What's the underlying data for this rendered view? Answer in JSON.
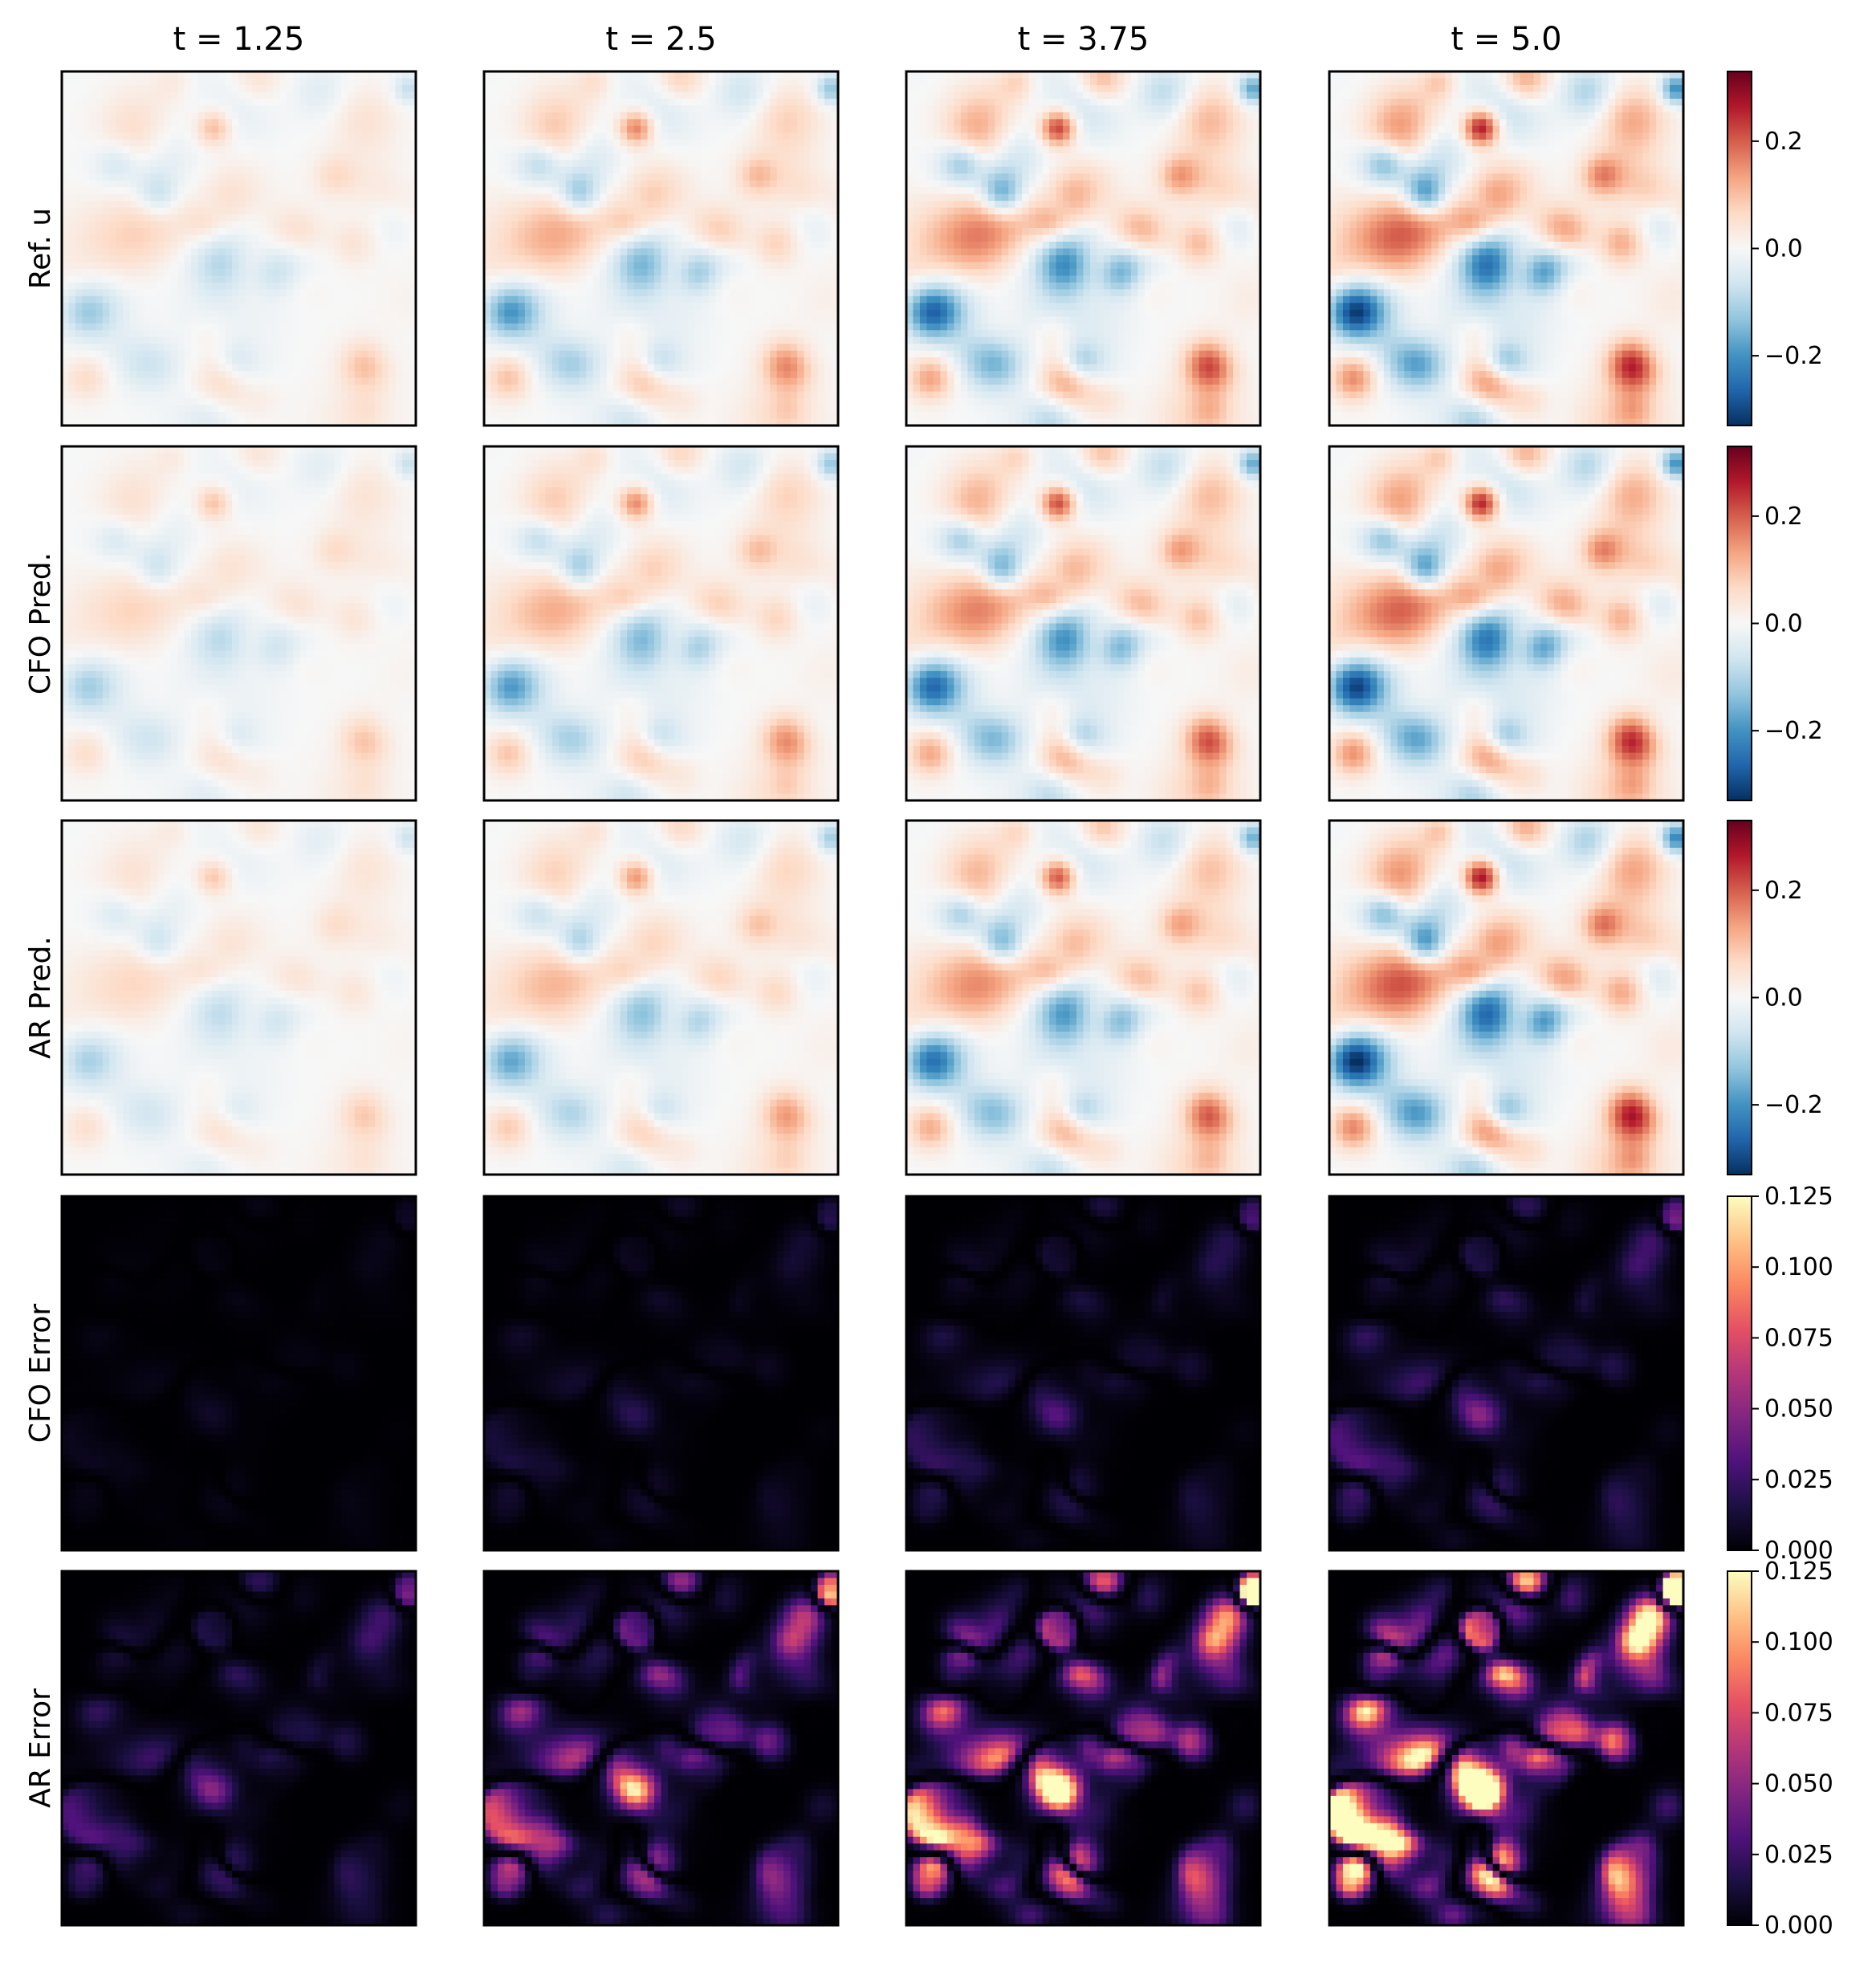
{
  "chart_data": {
    "type": "heatmap",
    "title": "",
    "columns": [
      "t = 1.25",
      "t = 2.5",
      "t = 3.75",
      "t = 5.0"
    ],
    "rows": [
      {
        "label": "Ref. u",
        "kind": "field",
        "strength": [
          0.38,
          0.62,
          0.85,
          1.0
        ]
      },
      {
        "label": "CFO Pred.",
        "kind": "field",
        "strength": [
          0.36,
          0.6,
          0.82,
          0.97
        ]
      },
      {
        "label": "AR Pred.",
        "kind": "field",
        "strength": [
          0.34,
          0.55,
          0.78,
          1.05
        ]
      },
      {
        "label": "CFO Error",
        "kind": "error",
        "strength": [
          0.04,
          0.09,
          0.15,
          0.22
        ]
      },
      {
        "label": "AR Error",
        "kind": "error",
        "strength": [
          0.22,
          0.55,
          0.85,
          1.2
        ]
      }
    ],
    "colorbars": [
      {
        "rows": [
          0,
          1,
          2
        ],
        "colormap": "RdBu_r",
        "range": [
          -0.33,
          0.33
        ],
        "ticks": [
          "0.2",
          "0.0",
          "−0.2"
        ],
        "tick_values": [
          0.2,
          0.0,
          -0.2
        ]
      },
      {
        "rows": [
          3,
          4
        ],
        "colormap": "magma",
        "range": [
          0.0,
          0.125
        ],
        "ticks": [
          "0.125",
          "0.100",
          "0.075",
          "0.050",
          "0.025",
          "0.000"
        ],
        "tick_values": [
          0.125,
          0.1,
          0.075,
          0.05,
          0.025,
          0.0
        ]
      }
    ],
    "grid": false,
    "axes_ticks": false
  },
  "colors": {
    "frame": "#000000",
    "rdbu_stops": [
      "#053061",
      "#2166ac",
      "#4393c3",
      "#92c5de",
      "#d1e5f0",
      "#f7f7f7",
      "#fddbc7",
      "#f4a582",
      "#d6604d",
      "#b2182b",
      "#67001f"
    ],
    "magma_stops": [
      "#000004",
      "#1c1044",
      "#4f127b",
      "#812581",
      "#b5367a",
      "#e55064",
      "#fb8761",
      "#fec287",
      "#fcfdbf"
    ]
  }
}
